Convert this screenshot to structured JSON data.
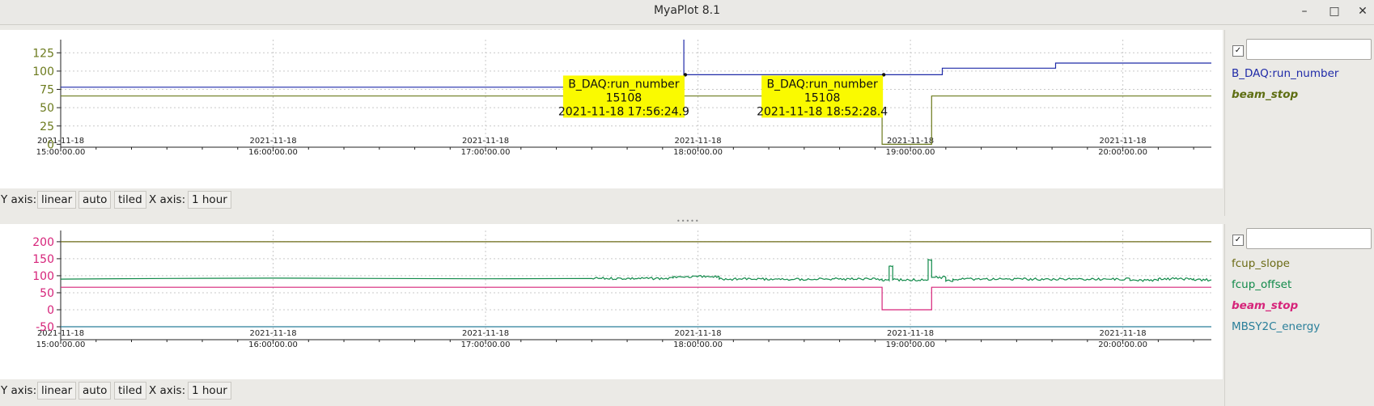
{
  "window": {
    "title": "MyaPlot 8.1",
    "minimize_glyph": "–",
    "maximize_glyph": "□",
    "close_glyph": "✕"
  },
  "axis_controls": {
    "y_label": "Y axis:",
    "y_scale": "linear",
    "y_range": "auto",
    "y_layout": "tiled",
    "x_label": "X axis:",
    "x_span": "1 hour"
  },
  "check_glyph": "✓",
  "chart_data": [
    {
      "type": "line",
      "x_type": "time",
      "x_range": [
        "2021-11-18 15:00:00",
        "2021-11-18 20:25:00"
      ],
      "x_tick_labels": [
        [
          "2021-11-18",
          "15:00:00.00"
        ],
        [
          "2021-11-18",
          "16:00:00.00"
        ],
        [
          "2021-11-18",
          "17:00:00.00"
        ],
        [
          "2021-11-18",
          "18:00:00.00"
        ],
        [
          "2021-11-18",
          "19:00:00.00"
        ],
        [
          "2021-11-18",
          "20:00:00.00"
        ]
      ],
      "y_ticks": [
        0,
        25,
        50,
        75,
        100,
        125
      ],
      "ylim": [
        -4,
        143
      ],
      "y_tick_color": "#6b7a1c",
      "grid": true,
      "legend_position": "right",
      "series": [
        {
          "name": "B_DAQ:run_number",
          "color": "#1f2aa8",
          "legend_style": "normal",
          "points": [
            [
              "2021-11-18 15:00:00",
              78
            ],
            [
              "2021-11-18 17:56:00",
              78
            ],
            [
              "2021-11-18 17:56:00",
              143
            ],
            [
              "2021-11-18 17:56:00",
              95
            ],
            [
              "2021-11-18 19:09:00",
              95
            ],
            [
              "2021-11-18 19:09:00",
              104
            ],
            [
              "2021-11-18 19:41:00",
              104
            ],
            [
              "2021-11-18 19:41:00",
              111
            ],
            [
              "2021-11-18 20:25:00",
              111
            ]
          ]
        },
        {
          "name": "beam_stop",
          "color": "#6b7a1c",
          "legend_style": "bold-italic",
          "points": [
            [
              "2021-11-18 15:00:00",
              66
            ],
            [
              "2021-11-18 18:52:00",
              66
            ],
            [
              "2021-11-18 18:52:00",
              0
            ],
            [
              "2021-11-18 19:06:00",
              0
            ],
            [
              "2021-11-18 19:06:00",
              66
            ],
            [
              "2021-11-18 20:25:00",
              66
            ]
          ]
        }
      ],
      "annotations": [
        {
          "series": "B_DAQ:run_number",
          "value": "15108",
          "timestamp": "2021-11-18 17:56:24.9",
          "at": [
            "2021-11-18 17:56:25",
            95
          ]
        },
        {
          "series": "B_DAQ:run_number",
          "value": "15108",
          "timestamp": "2021-11-18 18:52:28.4",
          "at": [
            "2021-11-18 18:52:28",
            95
          ]
        }
      ],
      "legend": {
        "filter_value": "",
        "checkbox_checked": true,
        "items": [
          {
            "label": "B_DAQ:run_number",
            "color": "#1f2aa8",
            "style": "normal"
          },
          {
            "label": "beam_stop",
            "color": "#5e6e12",
            "style": "bold-italic"
          }
        ]
      }
    },
    {
      "type": "line",
      "x_type": "time",
      "x_range": [
        "2021-11-18 15:00:00",
        "2021-11-18 20:25:00"
      ],
      "x_tick_labels": [
        [
          "2021-11-18",
          "15:00:00.00"
        ],
        [
          "2021-11-18",
          "16:00:00.00"
        ],
        [
          "2021-11-18",
          "17:00:00.00"
        ],
        [
          "2021-11-18",
          "18:00:00.00"
        ],
        [
          "2021-11-18",
          "19:00:00.00"
        ],
        [
          "2021-11-18",
          "20:00:00.00"
        ]
      ],
      "y_ticks": [
        -50,
        0,
        50,
        100,
        150,
        200
      ],
      "ylim": [
        -88,
        233
      ],
      "y_tick_color": "#d6247a",
      "grid": true,
      "legend_position": "right",
      "series": [
        {
          "name": "fcup_slope",
          "color": "#6b6a14",
          "legend_style": "normal",
          "points": [
            [
              "2021-11-18 15:00:00",
              200
            ],
            [
              "2021-11-18 20:25:00",
              200
            ]
          ]
        },
        {
          "name": "fcup_offset",
          "color": "#118a4a",
          "legend_style": "normal",
          "noisy": true,
          "noise_amplitude": 3,
          "points": [
            [
              "2021-11-18 15:00:00",
              90
            ],
            [
              "2021-11-18 15:30:00",
              92
            ],
            [
              "2021-11-18 16:00:00",
              93
            ],
            [
              "2021-11-18 16:30:00",
              92
            ],
            [
              "2021-11-18 17:00:00",
              91
            ],
            [
              "2021-11-18 17:30:00",
              92
            ],
            [
              "2021-11-18 17:53:00",
              92
            ],
            [
              "2021-11-18 17:53:00",
              97
            ],
            [
              "2021-11-18 18:06:00",
              97
            ],
            [
              "2021-11-18 18:06:00",
              90
            ],
            [
              "2021-11-18 18:52:00",
              90
            ],
            [
              "2021-11-18 18:52:00",
              86
            ],
            [
              "2021-11-18 18:54:00",
              86
            ],
            [
              "2021-11-18 18:54:00",
              128
            ],
            [
              "2021-11-18 18:55:00",
              128
            ],
            [
              "2021-11-18 18:55:00",
              88
            ],
            [
              "2021-11-18 19:05:00",
              88
            ],
            [
              "2021-11-18 19:05:00",
              148
            ],
            [
              "2021-11-18 19:06:00",
              148
            ],
            [
              "2021-11-18 19:06:00",
              95
            ],
            [
              "2021-11-18 19:10:00",
              95
            ],
            [
              "2021-11-18 19:10:00",
              84
            ],
            [
              "2021-11-18 19:12:00",
              84
            ],
            [
              "2021-11-18 19:12:00",
              90
            ],
            [
              "2021-11-18 20:02:00",
              90
            ],
            [
              "2021-11-18 20:02:00",
              86
            ],
            [
              "2021-11-18 20:10:00",
              86
            ],
            [
              "2021-11-18 20:10:00",
              91
            ],
            [
              "2021-11-18 20:20:00",
              91
            ],
            [
              "2021-11-18 20:20:00",
              88
            ],
            [
              "2021-11-18 20:25:00",
              88
            ]
          ]
        },
        {
          "name": "beam_stop",
          "color": "#d6247a",
          "legend_style": "bold-italic",
          "points": [
            [
              "2021-11-18 15:00:00",
              66
            ],
            [
              "2021-11-18 18:52:00",
              66
            ],
            [
              "2021-11-18 18:52:00",
              0
            ],
            [
              "2021-11-18 19:06:00",
              0
            ],
            [
              "2021-11-18 19:06:00",
              66
            ],
            [
              "2021-11-18 20:25:00",
              66
            ]
          ]
        },
        {
          "name": "MBSY2C_energy",
          "color": "#2a7f9a",
          "legend_style": "normal",
          "points": [
            [
              "2021-11-18 15:00:00",
              -50
            ],
            [
              "2021-11-18 20:25:00",
              -50
            ]
          ]
        }
      ],
      "legend": {
        "filter_value": "",
        "checkbox_checked": true,
        "items": [
          {
            "label": "fcup_slope",
            "color": "#6b6a14",
            "style": "normal"
          },
          {
            "label": "fcup_offset",
            "color": "#118a4a",
            "style": "normal"
          },
          {
            "label": "beam_stop",
            "color": "#d6247a",
            "style": "bold-italic"
          },
          {
            "label": "MBSY2C_energy",
            "color": "#2a7f9a",
            "style": "normal"
          }
        ]
      }
    }
  ]
}
